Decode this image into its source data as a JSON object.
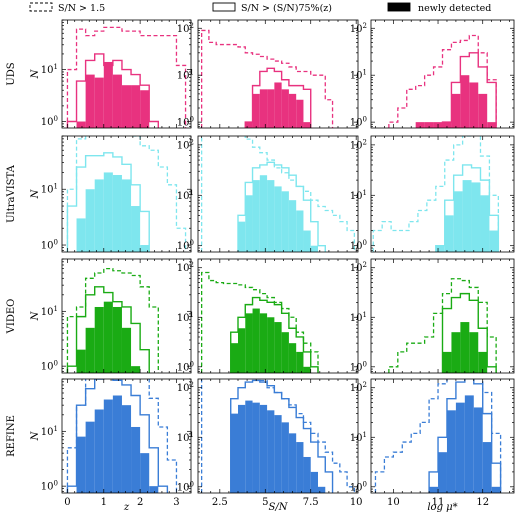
{
  "chart_data": {
    "type": "histogram-grid",
    "legend": {
      "placement": "top",
      "entries": [
        {
          "style": "dashed",
          "label": "S/N > 1.5"
        },
        {
          "style": "solid",
          "label": "S/N > (S/N)75%(z)"
        },
        {
          "style": "filled",
          "label": "newly detected"
        }
      ]
    },
    "rows": [
      {
        "label": "UDS",
        "color": "#e8327f"
      },
      {
        "label": "UltraVISTA",
        "color": "#7ee6ee"
      },
      {
        "label": "VIDEO",
        "color": "#1aab14"
      },
      {
        "label": "REFINE",
        "color": "#3a7dd6"
      }
    ],
    "columns": [
      {
        "xlabel": "z",
        "xlim": [
          -0.15,
          3.4
        ],
        "xticks": [
          0,
          1,
          2,
          3
        ],
        "ylim": [
          0.75,
          90
        ]
      },
      {
        "xlabel": "S/N",
        "xlim": [
          1.3,
          10.1
        ],
        "xticks": [
          2.5,
          5.0,
          7.5,
          10.0
        ],
        "ylim": [
          0.75,
          150
        ]
      },
      {
        "xlabel": "log μ*",
        "xlim": [
          9.5,
          12.7
        ],
        "xticks": [
          10,
          11,
          12
        ],
        "ylim": [
          0.75,
          150
        ]
      }
    ],
    "ylabel": "N",
    "log_y": true,
    "yticks": [
      1,
      10,
      100,
      1000
    ],
    "panels": [
      [
        {
          "edges": [
            0.0,
            0.25,
            0.5,
            0.75,
            1.0,
            1.25,
            1.5,
            1.75,
            2.0,
            2.25,
            2.5,
            2.75,
            3.0,
            3.25
          ],
          "dashed": [
            10,
            60,
            45,
            55,
            65,
            65,
            55,
            55,
            45,
            45,
            45,
            45,
            12
          ],
          "solid": [
            1,
            6,
            15,
            20,
            12,
            15,
            10,
            8,
            5,
            1,
            null,
            null,
            null
          ],
          "filled": [
            null,
            1,
            8,
            7,
            14,
            8,
            5,
            5,
            4,
            null,
            null,
            null,
            null
          ]
        },
        {
          "edges": [
            1.5,
            1.9,
            2.3,
            2.7,
            3.1,
            3.5,
            3.9,
            4.3,
            4.7,
            5.1,
            5.5,
            5.9,
            6.3,
            6.7,
            7.1,
            7.5,
            7.9,
            8.3,
            8.7
          ],
          "dashed": [
            90,
            50,
            45,
            45,
            45,
            40,
            30,
            28,
            25,
            22,
            20,
            18,
            15,
            12,
            12,
            10,
            10,
            3
          ],
          "solid": [
            null,
            null,
            null,
            null,
            null,
            null,
            1,
            6,
            12,
            14,
            12,
            8,
            6,
            6,
            5,
            null,
            null,
            null
          ],
          "filled": [
            null,
            null,
            null,
            null,
            null,
            null,
            1,
            4,
            5,
            5,
            7,
            5,
            4,
            3,
            1,
            null,
            null,
            null
          ]
        },
        {
          "edges": [
            9.9,
            10.1,
            10.3,
            10.5,
            10.7,
            10.9,
            11.1,
            11.3,
            11.5,
            11.7,
            11.9,
            12.1,
            12.3
          ],
          "dashed": [
            1,
            2,
            5,
            6,
            10,
            15,
            35,
            50,
            55,
            70,
            30,
            8
          ],
          "solid": [
            null,
            null,
            null,
            null,
            null,
            null,
            1,
            7,
            25,
            30,
            15,
            7
          ],
          "filled": [
            null,
            null,
            null,
            1,
            1,
            1,
            1,
            4,
            10,
            7,
            4,
            1
          ]
        }
      ],
      [
        {
          "edges": [
            0.0,
            0.25,
            0.5,
            0.75,
            1.0,
            1.25,
            1.5,
            1.75,
            2.0,
            2.25,
            2.5,
            2.75,
            3.0,
            3.25
          ],
          "dashed": [
            10,
            80,
            120,
            130,
            180,
            170,
            120,
            90,
            60,
            50,
            25,
            12,
            2
          ],
          "solid": [
            5,
            25,
            40,
            40,
            45,
            38,
            28,
            12,
            4,
            null,
            null,
            null,
            null
          ],
          "filled": [
            null,
            3,
            10,
            15,
            20,
            18,
            15,
            5,
            1,
            null,
            null,
            null,
            null
          ]
        },
        {
          "edges": [
            1.5,
            1.9,
            2.3,
            2.7,
            3.1,
            3.5,
            3.9,
            4.3,
            4.7,
            5.1,
            5.5,
            5.9,
            6.3,
            6.7,
            7.1,
            7.5,
            7.9,
            8.3,
            8.7,
            9.1,
            9.5,
            9.9
          ],
          "dashed": [
            550,
            450,
            400,
            320,
            250,
            180,
            130,
            90,
            70,
            50,
            35,
            28,
            20,
            15,
            12,
            8,
            6,
            5,
            4,
            3,
            2
          ],
          "solid": [
            null,
            null,
            null,
            null,
            null,
            4,
            18,
            35,
            40,
            45,
            40,
            35,
            25,
            15,
            8,
            3,
            1,
            null,
            null,
            null,
            null
          ],
          "filled": [
            null,
            null,
            null,
            null,
            null,
            3,
            10,
            20,
            25,
            20,
            15,
            12,
            8,
            5,
            2,
            1,
            null,
            null,
            null,
            null,
            null
          ]
        },
        {
          "edges": [
            9.55,
            9.75,
            9.95,
            10.15,
            10.35,
            10.55,
            10.75,
            10.95,
            11.15,
            11.35,
            11.55,
            11.75,
            11.95,
            12.15,
            12.35
          ],
          "dashed": [
            2,
            3,
            2,
            2,
            3,
            5,
            8,
            15,
            50,
            100,
            150,
            200,
            60,
            10
          ],
          "solid": [
            null,
            null,
            null,
            null,
            null,
            null,
            null,
            1,
            8,
            25,
            40,
            35,
            20,
            4
          ],
          "filled": [
            null,
            null,
            null,
            null,
            null,
            null,
            null,
            1,
            4,
            12,
            20,
            18,
            10,
            2
          ]
        }
      ],
      [
        {
          "edges": [
            0.0,
            0.25,
            0.5,
            0.75,
            1.0,
            1.25,
            1.5,
            1.75,
            2.0,
            2.25,
            2.5,
            2.75,
            3.0,
            3.25
          ],
          "dashed": [
            8,
            12,
            40,
            50,
            60,
            55,
            50,
            45,
            28,
            12,
            null,
            null,
            null
          ],
          "solid": [
            1,
            8,
            20,
            28,
            22,
            15,
            12,
            6,
            2,
            null,
            null,
            null,
            null
          ],
          "filled": [
            null,
            2,
            5,
            12,
            15,
            12,
            5,
            1,
            null,
            null,
            null,
            null,
            null
          ]
        },
        {
          "edges": [
            1.5,
            1.9,
            2.3,
            2.7,
            3.1,
            3.5,
            3.9,
            4.3,
            4.7,
            5.1,
            5.5,
            5.9,
            6.3,
            6.7,
            7.1,
            7.5,
            7.9,
            8.3,
            8.7
          ],
          "dashed": [
            80,
            55,
            50,
            48,
            48,
            45,
            40,
            36,
            30,
            25,
            20,
            15,
            10,
            5,
            3,
            2,
            null,
            null
          ],
          "solid": [
            null,
            null,
            null,
            null,
            5,
            10,
            18,
            25,
            22,
            20,
            18,
            12,
            6,
            4,
            2,
            1,
            null,
            null
          ],
          "filled": [
            null,
            null,
            null,
            null,
            3,
            6,
            12,
            15,
            12,
            10,
            8,
            5,
            3,
            2,
            1,
            null,
            null,
            null
          ]
        },
        {
          "edges": [
            9.9,
            10.1,
            10.3,
            10.5,
            10.7,
            10.9,
            11.1,
            11.3,
            11.5,
            11.7,
            11.9,
            12.1,
            12.3
          ],
          "dashed": [
            1,
            2,
            3,
            3,
            4,
            12,
            30,
            60,
            55,
            40,
            20,
            4
          ],
          "solid": [
            null,
            null,
            null,
            null,
            null,
            null,
            15,
            25,
            30,
            22,
            6,
            1
          ],
          "filled": [
            null,
            null,
            null,
            null,
            null,
            null,
            2,
            5,
            8,
            5,
            2,
            null
          ]
        }
      ],
      [
        {
          "edges": [
            0.0,
            0.25,
            0.5,
            0.75,
            1.0,
            1.25,
            1.5,
            1.75,
            2.0,
            2.25,
            2.5,
            2.75,
            3.0,
            3.25
          ],
          "dashed": [
            5,
            30,
            100,
            200,
            350,
            300,
            250,
            180,
            100,
            40,
            12,
            3,
            null
          ],
          "solid": [
            1,
            30,
            60,
            90,
            100,
            85,
            70,
            45,
            20,
            5,
            1,
            null,
            null
          ],
          "filled": [
            null,
            8,
            15,
            25,
            38,
            45,
            30,
            12,
            4,
            1,
            null,
            null,
            null
          ]
        },
        {
          "edges": [
            1.5,
            1.9,
            2.3,
            2.7,
            3.1,
            3.5,
            3.9,
            4.3,
            4.7,
            5.1,
            5.5,
            5.9,
            6.3,
            6.7,
            7.1,
            7.5,
            7.9,
            8.3,
            8.7,
            9.1,
            9.5,
            9.9
          ],
          "dashed": [
            950,
            800,
            700,
            500,
            400,
            300,
            220,
            180,
            140,
            100,
            80,
            60,
            45,
            30,
            20,
            12,
            8,
            5,
            3,
            2,
            1
          ],
          "solid": [
            null,
            null,
            null,
            null,
            60,
            100,
            130,
            140,
            130,
            110,
            80,
            60,
            40,
            25,
            15,
            8,
            4,
            2,
            null,
            null,
            null
          ],
          "filled": [
            null,
            null,
            null,
            null,
            30,
            45,
            55,
            50,
            45,
            35,
            28,
            20,
            12,
            8,
            4,
            2,
            1,
            null,
            null,
            null,
            null
          ]
        },
        {
          "edges": [
            9.6,
            9.8,
            10.0,
            10.2,
            10.4,
            10.6,
            10.8,
            11.0,
            11.2,
            11.4,
            11.6,
            11.8,
            12.0,
            12.2,
            12.4
          ],
          "dashed": [
            2,
            4,
            5,
            8,
            12,
            20,
            60,
            120,
            300,
            350,
            300,
            200,
            80,
            12
          ],
          "solid": [
            null,
            null,
            null,
            null,
            null,
            null,
            2,
            10,
            60,
            130,
            200,
            120,
            30,
            3
          ],
          "filled": [
            null,
            null,
            null,
            null,
            null,
            null,
            1,
            5,
            35,
            50,
            70,
            40,
            8,
            1
          ]
        }
      ]
    ]
  }
}
